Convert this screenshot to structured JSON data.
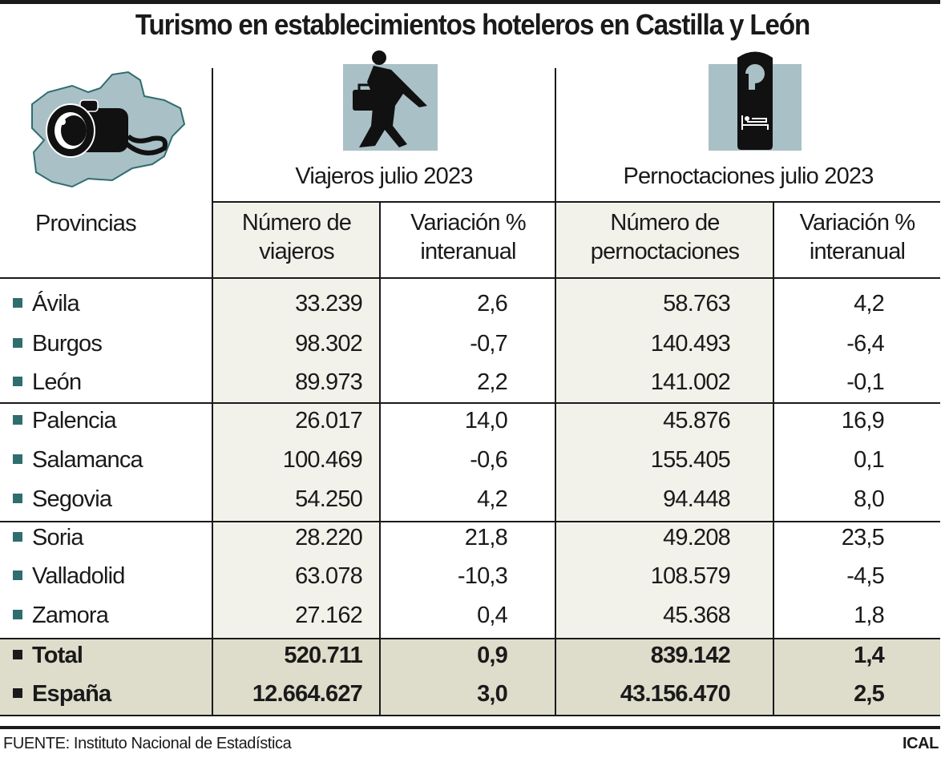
{
  "title": "Turismo en establecimientos hoteleros en Castilla y León",
  "icons": {
    "map": "castilla-leon-map-camera-icon",
    "traveler": "traveler-suitcase-icon",
    "hotel": "hotel-door-hanger-bed-icon"
  },
  "colors": {
    "bullet": "#2f6d6f",
    "icon_bg": "#a9c0c6",
    "shade": "#f2f1ea",
    "total_band": "#dedccb"
  },
  "headers": {
    "provinces": "Provincias",
    "group1": "Viajeros julio 2023",
    "group2": "Pernoctaciones julio 2023",
    "col1": [
      "Número de",
      "viajeros"
    ],
    "col2": [
      "Variación %",
      "interanual"
    ],
    "col3": [
      "Número de",
      "pernoctaciones"
    ],
    "col4": [
      "Variación %",
      "interanual"
    ]
  },
  "chart_data": {
    "type": "table",
    "title": "Turismo en establecimientos hoteleros en Castilla y León",
    "rows": [
      {
        "name": "Ávila",
        "viajeros": "33.239",
        "var_viajeros": "2,6",
        "pernoctaciones": "58.763",
        "var_pernoctaciones": "4,2"
      },
      {
        "name": "Burgos",
        "viajeros": "98.302",
        "var_viajeros": "-0,7",
        "pernoctaciones": "140.493",
        "var_pernoctaciones": "-6,4"
      },
      {
        "name": "León",
        "viajeros": "89.973",
        "var_viajeros": "2,2",
        "pernoctaciones": "141.002",
        "var_pernoctaciones": "-0,1"
      },
      {
        "name": "Palencia",
        "viajeros": "26.017",
        "var_viajeros": "14,0",
        "pernoctaciones": "45.876",
        "var_pernoctaciones": "16,9"
      },
      {
        "name": "Salamanca",
        "viajeros": "100.469",
        "var_viajeros": "-0,6",
        "pernoctaciones": "155.405",
        "var_pernoctaciones": "0,1"
      },
      {
        "name": "Segovia",
        "viajeros": "54.250",
        "var_viajeros": "4,2",
        "pernoctaciones": "94.448",
        "var_pernoctaciones": "8,0"
      },
      {
        "name": "Soria",
        "viajeros": "28.220",
        "var_viajeros": "21,8",
        "pernoctaciones": "49.208",
        "var_pernoctaciones": "23,5"
      },
      {
        "name": "Valladolid",
        "viajeros": "63.078",
        "var_viajeros": "-10,3",
        "pernoctaciones": "108.579",
        "var_pernoctaciones": "-4,5"
      },
      {
        "name": "Zamora",
        "viajeros": "27.162",
        "var_viajeros": "0,4",
        "pernoctaciones": "45.368",
        "var_pernoctaciones": "1,8"
      }
    ],
    "totals": [
      {
        "name": "Total",
        "viajeros": "520.711",
        "var_viajeros": "0,9",
        "pernoctaciones": "839.142",
        "var_pernoctaciones": "1,4"
      },
      {
        "name": "España",
        "viajeros": "12.664.627",
        "var_viajeros": "3,0",
        "pernoctaciones": "43.156.470",
        "var_pernoctaciones": "2,5"
      }
    ]
  },
  "footer": {
    "source": "FUENTE: Instituto Nacional de Estadística",
    "credit": "ICAL"
  }
}
